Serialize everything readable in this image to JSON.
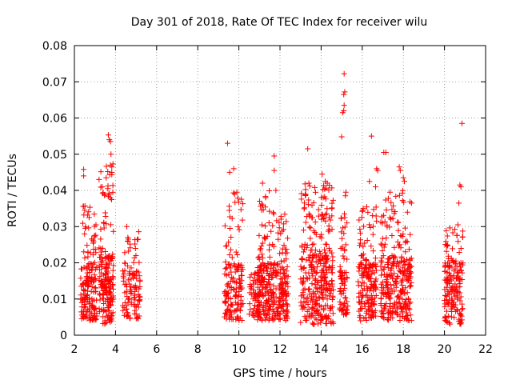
{
  "chart_data": {
    "type": "scatter",
    "title": "Day 301 of 2018, Rate Of TEC Index for receiver wilu",
    "xlabel": "GPS time / hours",
    "ylabel": "ROTI / TECUs",
    "xlim": [
      2,
      22
    ],
    "ylim": [
      0,
      0.08
    ],
    "grid": true,
    "marker": "+",
    "colors": {
      "marker": "#ff0000",
      "grid": "#a0a0a0",
      "axis": "#000000"
    },
    "x_ticks": [
      "2",
      "4",
      "6",
      "8",
      "10",
      "12",
      "14",
      "16",
      "18",
      "20",
      "22"
    ],
    "y_ticks": [
      "0",
      "0.01",
      "0.02",
      "0.03",
      "0.04",
      "0.05",
      "0.06",
      "0.07",
      "0.08"
    ],
    "x_tick_values": [
      2,
      4,
      6,
      8,
      10,
      12,
      14,
      16,
      18,
      20,
      22
    ],
    "y_tick_values": [
      0,
      0.01,
      0.02,
      0.03,
      0.04,
      0.05,
      0.06,
      0.07,
      0.08
    ],
    "clusters": [
      {
        "x": [
          2.3,
          3.1
        ],
        "base": [
          0.004,
          0.02
        ],
        "tail": 0.036,
        "n": 170
      },
      {
        "x": [
          3.2,
          3.9
        ],
        "base": [
          0.003,
          0.022
        ],
        "tail": 0.048,
        "n": 200
      },
      {
        "x": [
          4.35,
          5.2
        ],
        "base": [
          0.004,
          0.018
        ],
        "tail": 0.029,
        "n": 110
      },
      {
        "x": [
          9.3,
          10.2
        ],
        "base": [
          0.004,
          0.02
        ],
        "tail": 0.04,
        "n": 150
      },
      {
        "x": [
          10.5,
          11.0
        ],
        "base": [
          0.005,
          0.015
        ],
        "tail": 0.018,
        "n": 50
      },
      {
        "x": [
          10.9,
          11.6
        ],
        "base": [
          0.004,
          0.02
        ],
        "tail": 0.04,
        "n": 160
      },
      {
        "x": [
          11.6,
          12.4
        ],
        "base": [
          0.004,
          0.02
        ],
        "tail": 0.034,
        "n": 160
      },
      {
        "x": [
          13.0,
          14.6
        ],
        "base": [
          0.003,
          0.022
        ],
        "tail": 0.042,
        "n": 340
      },
      {
        "x": [
          14.9,
          15.3
        ],
        "base": [
          0.005,
          0.018
        ],
        "tail": 0.034,
        "n": 70
      },
      {
        "x": [
          15.8,
          16.7
        ],
        "base": [
          0.004,
          0.02
        ],
        "tail": 0.036,
        "n": 180
      },
      {
        "x": [
          16.9,
          18.4
        ],
        "base": [
          0.004,
          0.022
        ],
        "tail": 0.04,
        "n": 290
      },
      {
        "x": [
          20.0,
          20.9
        ],
        "base": [
          0.003,
          0.02
        ],
        "tail": 0.03,
        "n": 170
      }
    ],
    "outliers": [
      {
        "x": 2.45,
        "y": 0.0458
      },
      {
        "x": 2.45,
        "y": 0.044
      },
      {
        "x": 2.5,
        "y": 0.0345
      },
      {
        "x": 3.2,
        "y": 0.043
      },
      {
        "x": 3.05,
        "y": 0.0305
      },
      {
        "x": 3.35,
        "y": 0.041
      },
      {
        "x": 3.65,
        "y": 0.0553
      },
      {
        "x": 3.7,
        "y": 0.054
      },
      {
        "x": 3.75,
        "y": 0.0535
      },
      {
        "x": 3.78,
        "y": 0.05
      },
      {
        "x": 3.82,
        "y": 0.0465
      },
      {
        "x": 3.75,
        "y": 0.047
      },
      {
        "x": 4.55,
        "y": 0.03
      },
      {
        "x": 4.6,
        "y": 0.027
      },
      {
        "x": 5.1,
        "y": 0.0265
      },
      {
        "x": 9.45,
        "y": 0.053
      },
      {
        "x": 9.55,
        "y": 0.045
      },
      {
        "x": 9.75,
        "y": 0.046
      },
      {
        "x": 9.8,
        "y": 0.039
      },
      {
        "x": 9.9,
        "y": 0.0395
      },
      {
        "x": 11.15,
        "y": 0.042
      },
      {
        "x": 11.3,
        "y": 0.038
      },
      {
        "x": 11.72,
        "y": 0.0495
      },
      {
        "x": 11.72,
        "y": 0.0455
      },
      {
        "x": 11.8,
        "y": 0.04
      },
      {
        "x": 13.35,
        "y": 0.0515
      },
      {
        "x": 14.2,
        "y": 0.0425
      },
      {
        "x": 14.3,
        "y": 0.042
      },
      {
        "x": 14.1,
        "y": 0.038
      },
      {
        "x": 14.05,
        "y": 0.0445
      },
      {
        "x": 15.12,
        "y": 0.0722
      },
      {
        "x": 15.15,
        "y": 0.0672
      },
      {
        "x": 15.1,
        "y": 0.0665
      },
      {
        "x": 15.12,
        "y": 0.0635
      },
      {
        "x": 15.05,
        "y": 0.0615
      },
      {
        "x": 15.1,
        "y": 0.062
      },
      {
        "x": 15.0,
        "y": 0.0548
      },
      {
        "x": 15.2,
        "y": 0.0395
      },
      {
        "x": 15.18,
        "y": 0.0385
      },
      {
        "x": 15.15,
        "y": 0.0325
      },
      {
        "x": 15.2,
        "y": 0.025
      },
      {
        "x": 16.45,
        "y": 0.055
      },
      {
        "x": 16.35,
        "y": 0.0425
      },
      {
        "x": 16.7,
        "y": 0.046
      },
      {
        "x": 16.75,
        "y": 0.0455
      },
      {
        "x": 16.65,
        "y": 0.041
      },
      {
        "x": 17.05,
        "y": 0.0505
      },
      {
        "x": 17.15,
        "y": 0.0505
      },
      {
        "x": 17.35,
        "y": 0.0395
      },
      {
        "x": 17.8,
        "y": 0.0465
      },
      {
        "x": 17.85,
        "y": 0.0455
      },
      {
        "x": 18.0,
        "y": 0.0435
      },
      {
        "x": 18.05,
        "y": 0.0425
      },
      {
        "x": 16.05,
        "y": 0.035
      },
      {
        "x": 16.5,
        "y": 0.033
      },
      {
        "x": 20.85,
        "y": 0.0585
      },
      {
        "x": 20.75,
        "y": 0.0415
      },
      {
        "x": 20.8,
        "y": 0.041
      },
      {
        "x": 20.7,
        "y": 0.0365
      },
      {
        "x": 20.65,
        "y": 0.0305
      }
    ]
  }
}
